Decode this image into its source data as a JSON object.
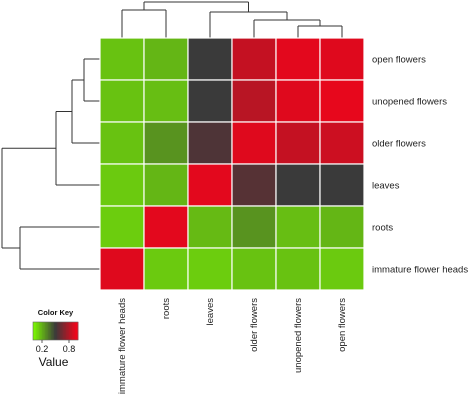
{
  "chart_data": {
    "type": "heatmap",
    "rows": [
      "open flowers",
      "unopened flowers",
      "older flowers",
      "leaves",
      "roots",
      "immature flower heads"
    ],
    "columns": [
      "immature flower heads",
      "roots",
      "leaves",
      "older flowers",
      "unopened flowers",
      "open flowers"
    ],
    "values": [
      [
        0.15,
        0.18,
        0.5,
        0.85,
        0.93,
        0.92
      ],
      [
        0.15,
        0.16,
        0.5,
        0.82,
        0.92,
        0.94
      ],
      [
        0.15,
        0.27,
        0.55,
        0.92,
        0.85,
        0.87
      ],
      [
        0.13,
        0.18,
        0.93,
        0.57,
        0.5,
        0.5
      ],
      [
        0.12,
        0.93,
        0.17,
        0.27,
        0.16,
        0.18
      ],
      [
        0.92,
        0.13,
        0.12,
        0.15,
        0.15,
        0.13
      ]
    ],
    "color_scale": {
      "low": "#7cfc00",
      "mid": "#3a3a3a",
      "high": "#ff0018",
      "min": 0,
      "max": 1
    },
    "grid": true,
    "legend": {
      "title": "Color Key",
      "ticks": [
        "0.2",
        "0.8"
      ],
      "tick_values": [
        0.2,
        0.8
      ],
      "label": "Value",
      "placement": "bottom-left"
    },
    "row_dendrogram": true,
    "column_dendrogram": true
  }
}
